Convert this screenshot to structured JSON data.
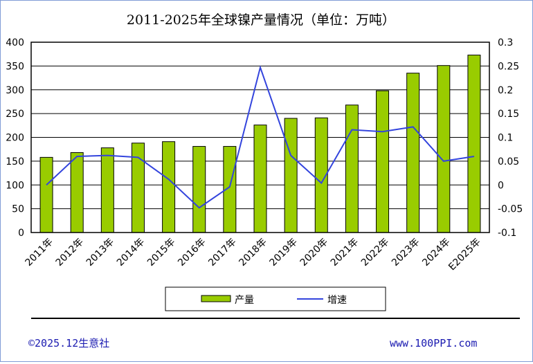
{
  "chart_data": {
    "type": "bar",
    "title": "2011-2025年全球镍产量情况（单位：万吨）",
    "categories": [
      "2011年",
      "2012年",
      "2013年",
      "2014年",
      "2015年",
      "2016年",
      "2017年",
      "2018年",
      "2019年",
      "2020年",
      "2021年",
      "2022年",
      "2023年",
      "2024年",
      "E2025年"
    ],
    "series": [
      {
        "name": "产量",
        "type": "bar",
        "axis": "left",
        "color": "#99cc00",
        "values": [
          158,
          168,
          178,
          188,
          191,
          181,
          181,
          226,
          240,
          241,
          268,
          298,
          335,
          351,
          373
        ]
      },
      {
        "name": "增速",
        "type": "line",
        "axis": "right",
        "color": "#3344dd",
        "values": [
          0,
          0.06,
          0.062,
          0.058,
          0.012,
          -0.048,
          -0.004,
          0.247,
          0.062,
          0.004,
          0.116,
          0.112,
          0.122,
          0.05,
          0.06
        ]
      }
    ],
    "ylim_left": [
      0,
      400
    ],
    "yticks_left": [
      "400",
      "350",
      "300",
      "250",
      "200",
      "150",
      "100",
      "50",
      "0"
    ],
    "ylim_right": [
      -0.1,
      0.3
    ],
    "yticks_right": [
      "0.3",
      "0.25",
      "0.2",
      "0.15",
      "0.1",
      "0.05",
      "0",
      "-0.05",
      "-0.1"
    ],
    "grid": true,
    "legend": "bottom"
  },
  "footer": {
    "copyright": "©2025.12生意社",
    "website": "www.100PPI.com"
  }
}
